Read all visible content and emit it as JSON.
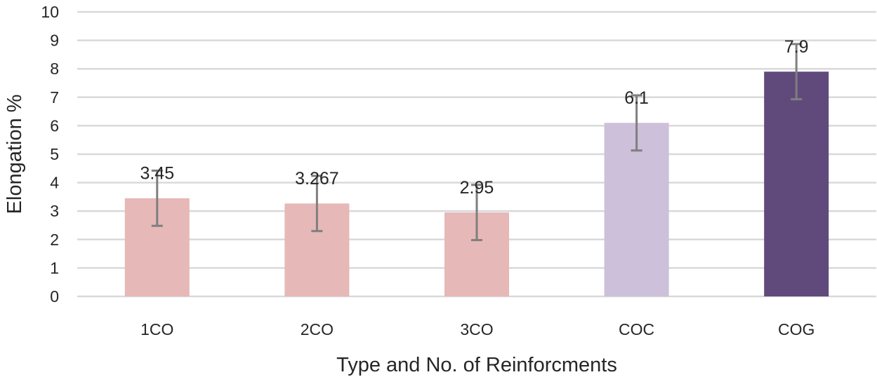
{
  "chart_data": {
    "type": "bar",
    "title": "",
    "xlabel": "Type and No. of Reinforcments",
    "ylabel": "Elongation %",
    "ylim": [
      0,
      10
    ],
    "yticks": [
      "0",
      "1",
      "2",
      "3",
      "4",
      "5",
      "6",
      "7",
      "8",
      "9",
      "10"
    ],
    "grid": true,
    "categories": [
      "1CO",
      "2CO",
      "3CO",
      "COC",
      "COG"
    ],
    "values": [
      3.45,
      3.267,
      2.95,
      6.1,
      7.9
    ],
    "data_labels": [
      "3.45",
      "3.267",
      "2.95",
      "6.1",
      "7.9"
    ],
    "error": [
      0.97,
      0.97,
      0.97,
      0.97,
      0.97
    ],
    "colors": [
      "#e6b8b7",
      "#e6b8b7",
      "#e6b8b7",
      "#ccc0da",
      "#604a7b"
    ],
    "gridline_color": "#d9d9d9",
    "errorbar_color": "#7f7f7f"
  }
}
